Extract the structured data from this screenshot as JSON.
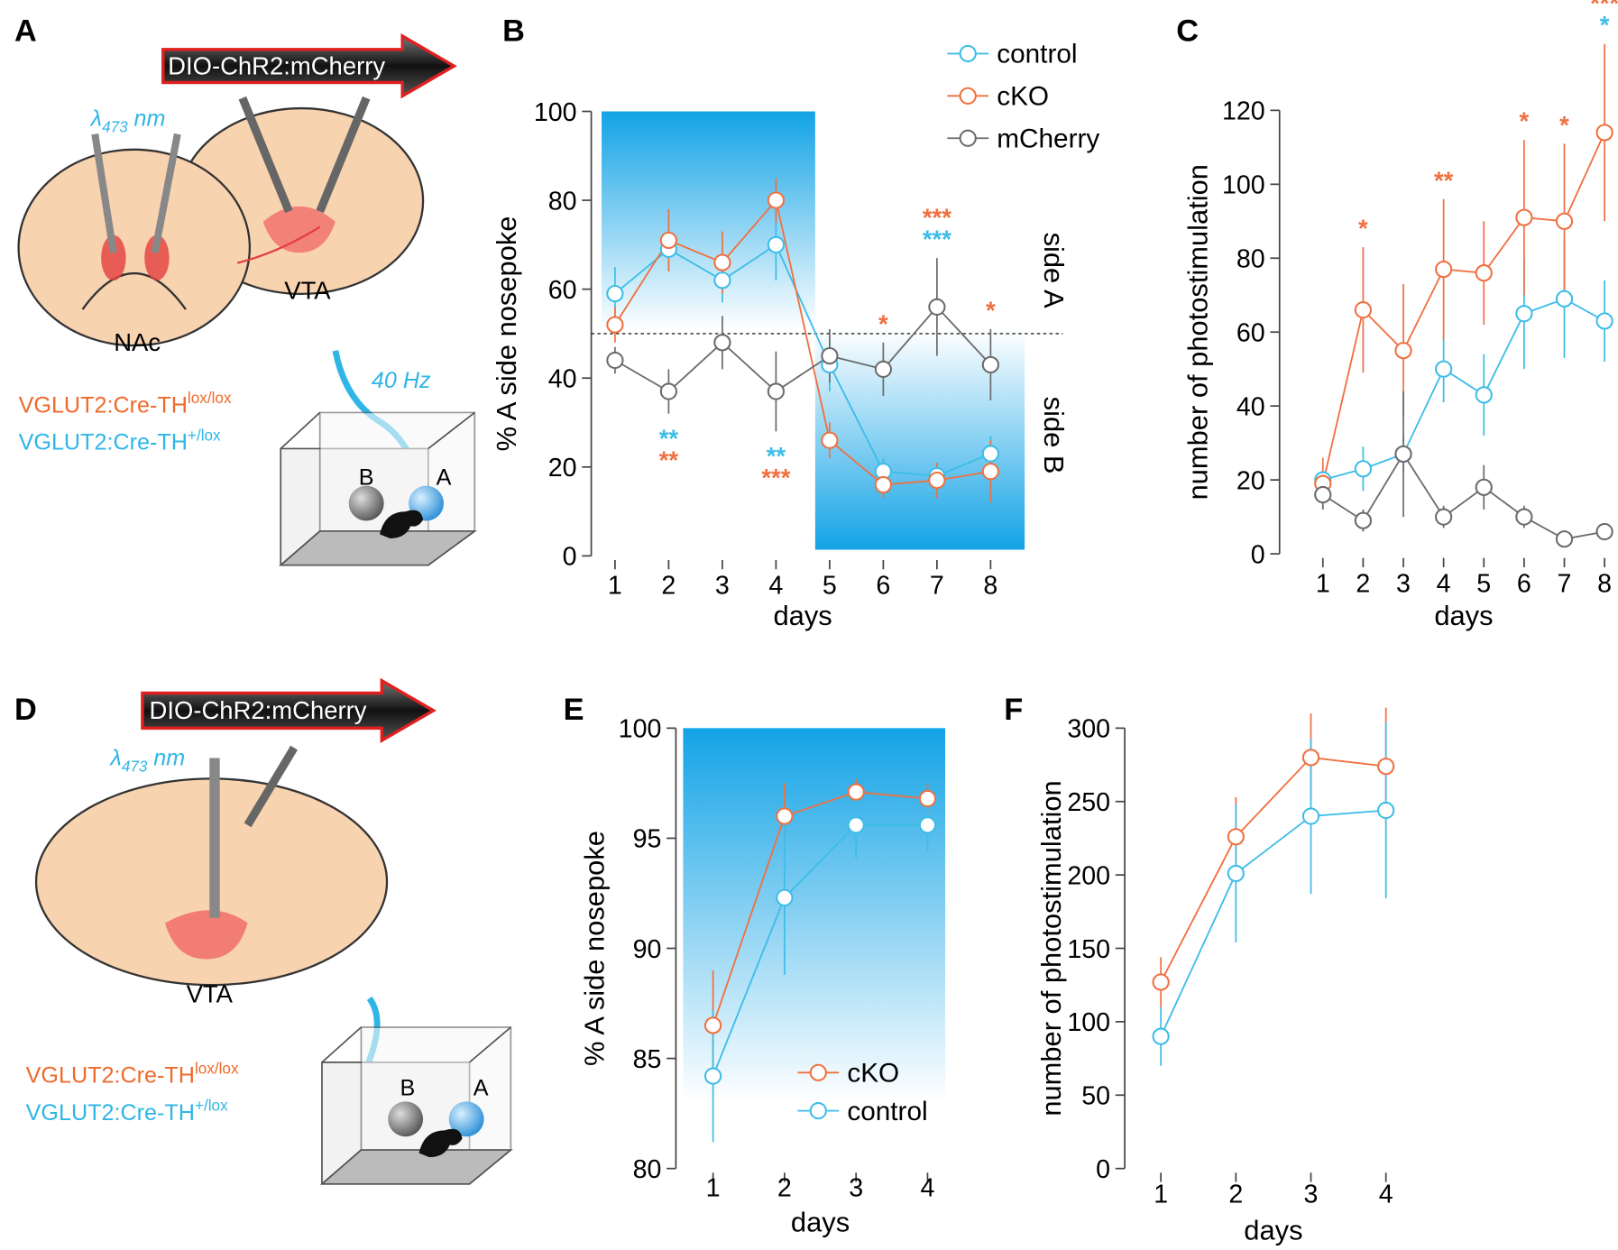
{
  "diagrams": [
    {
      "panel": "A",
      "construct": "DIO-ChR2:mCherry",
      "light": {
        "symbol": "λ",
        "subscript": "473",
        "unit": "nm"
      },
      "regions": [
        "NAc",
        "VTA"
      ],
      "stimulation": "40 Hz",
      "genotypes": [
        {
          "text": "VGLUT2:Cre-TH",
          "superscript": "lox/lox",
          "color": "#ee6a2c"
        },
        {
          "text": "VGLUT2:Cre-TH",
          "superscript": "+/lox",
          "color": "#2fb6e6"
        }
      ],
      "ports": [
        "B",
        "A"
      ]
    },
    {
      "panel": "D",
      "construct": "DIO-ChR2:mCherry",
      "light": {
        "symbol": "λ",
        "subscript": "473",
        "unit": "nm"
      },
      "regions": [
        "VTA"
      ],
      "genotypes": [
        {
          "text": "VGLUT2:Cre-TH",
          "superscript": "lox/lox",
          "color": "#ee6a2c"
        },
        {
          "text": "VGLUT2:Cre-TH",
          "superscript": "+/lox",
          "color": "#2fb6e6"
        }
      ],
      "ports": [
        "B",
        "A"
      ]
    }
  ],
  "chart_data": [
    {
      "type": "line",
      "panel": "B",
      "categories": [
        "1",
        "2",
        "3",
        "4",
        "5",
        "6",
        "7",
        "8"
      ],
      "xlabel": "days",
      "ylabel": "% A side nosepoke",
      "ylim": [
        0,
        100
      ],
      "yticks": [
        0,
        20,
        40,
        60,
        80,
        100
      ],
      "hline": 50,
      "side_labels": [
        "side A",
        "side B"
      ],
      "legend": "upper right",
      "series": [
        {
          "name": "control",
          "color": "#3dbde8",
          "values": [
            59,
            69,
            62,
            70,
            43,
            19,
            18,
            23
          ],
          "errors": [
            6,
            5,
            5,
            8,
            6,
            3,
            3,
            4
          ],
          "significance": [
            null,
            "**",
            null,
            "**",
            null,
            null,
            "***",
            null
          ]
        },
        {
          "name": "cKO",
          "color": "#f07040",
          "values": [
            52,
            71,
            66,
            80,
            26,
            16,
            17,
            19
          ],
          "errors": [
            4,
            7,
            7,
            5,
            4,
            3,
            4,
            7
          ],
          "significance": [
            null,
            "**",
            null,
            "***",
            null,
            "*",
            "***",
            "*"
          ]
        },
        {
          "name": "mCherry",
          "color": "#6b6b6b",
          "values": [
            44,
            37,
            48,
            37,
            45,
            42,
            56,
            43
          ],
          "errors": [
            3,
            5,
            6,
            9,
            6,
            6,
            11,
            8
          ]
        }
      ]
    },
    {
      "type": "line",
      "panel": "C",
      "categories": [
        "1",
        "2",
        "3",
        "4",
        "5",
        "6",
        "7",
        "8"
      ],
      "xlabel": "days",
      "ylabel": "number of photostimulation",
      "ylim": [
        0,
        120
      ],
      "yticks": [
        0,
        20,
        40,
        60,
        80,
        100,
        120
      ],
      "series": [
        {
          "name": "control",
          "color": "#3dbde8",
          "values": [
            20,
            23,
            27,
            50,
            43,
            65,
            69,
            63
          ],
          "errors": [
            2,
            6,
            5,
            9,
            11,
            15,
            16,
            11
          ],
          "significance": [
            null,
            null,
            null,
            null,
            null,
            null,
            null,
            "*"
          ]
        },
        {
          "name": "cKO",
          "color": "#f07040",
          "values": [
            19,
            66,
            55,
            77,
            76,
            91,
            90,
            114
          ],
          "errors": [
            7,
            17,
            18,
            19,
            14,
            21,
            21,
            24
          ],
          "significance": [
            null,
            "*",
            null,
            "**",
            null,
            "*",
            "*",
            "***"
          ]
        },
        {
          "name": "mCherry",
          "color": "#6b6b6b",
          "values": [
            16,
            9,
            27,
            10,
            18,
            10,
            4,
            6
          ],
          "errors": [
            4,
            3,
            17,
            3,
            6,
            3,
            1,
            1
          ]
        }
      ]
    },
    {
      "type": "line",
      "panel": "E",
      "categories": [
        "1",
        "2",
        "3",
        "4"
      ],
      "xlabel": "days",
      "ylabel": "% A side nosepoke",
      "ylim": [
        80,
        100
      ],
      "yticks": [
        80,
        85,
        90,
        95,
        100
      ],
      "legend": "lower right",
      "series": [
        {
          "name": "cKO",
          "color": "#f07040",
          "values": [
            86.5,
            96,
            97.1,
            96.8
          ],
          "errors": [
            2.5,
            1.5,
            0.6,
            0.7
          ]
        },
        {
          "name": "control",
          "color": "#3dbde8",
          "values": [
            84.2,
            92.3,
            95.6,
            95.6
          ],
          "errors": [
            3,
            3.5,
            1.5,
            1.2
          ]
        }
      ]
    },
    {
      "type": "line",
      "panel": "F",
      "categories": [
        "1",
        "2",
        "3",
        "4"
      ],
      "xlabel": "days",
      "ylabel": "number of photostimulation",
      "ylim": [
        0,
        300
      ],
      "yticks": [
        0,
        50,
        100,
        150,
        200,
        250,
        300
      ],
      "series": [
        {
          "name": "cKO",
          "color": "#f07040",
          "values": [
            127,
            226,
            280,
            274
          ],
          "errors": [
            17,
            27,
            30,
            40
          ]
        },
        {
          "name": "control",
          "color": "#3dbde8",
          "values": [
            90,
            201,
            240,
            244
          ],
          "errors": [
            20,
            47,
            53,
            60
          ]
        }
      ]
    }
  ]
}
